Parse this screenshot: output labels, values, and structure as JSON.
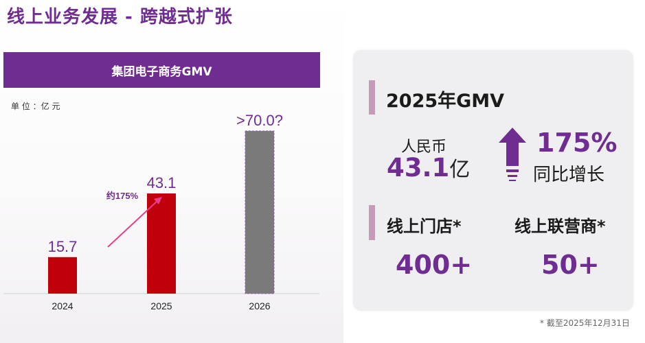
{
  "page": {
    "title": "线上业务发展 - 跨越式扩张"
  },
  "chart_section": {
    "header": "集团电子商务GMV",
    "unit_label": "单 位 ：亿 元"
  },
  "chart_data": {
    "type": "bar",
    "categories": [
      "2024",
      "2025",
      "2026"
    ],
    "values": [
      15.7,
      43.1,
      70.0
    ],
    "value_labels": [
      "15.7",
      "43.1",
      ">70.0?"
    ],
    "bar_colors": [
      "#c0000a",
      "#c0000a",
      "#7a7a7a"
    ],
    "annotation": "约175%",
    "ylim": [
      0,
      80
    ],
    "grid": false,
    "legend": "none"
  },
  "summary": {
    "gmv_title": "2025年GMV",
    "rmb_label": "人民币",
    "rmb_value": "43.1",
    "rmb_unit": "亿",
    "growth_value": "175%",
    "growth_label": "同比增长",
    "stores_label": "线上门店*",
    "stores_value": "400+",
    "dealers_label": "线上联营商*",
    "dealers_value": "50+"
  },
  "footnote": "* 截至2025年12月31日",
  "colors": {
    "brand_purple": "#6f2c91",
    "bar_red": "#c0000a",
    "bar_gray": "#7a7a7a",
    "annotation_pink": "#e83e8c",
    "accent_pink": "#c79ab9"
  }
}
